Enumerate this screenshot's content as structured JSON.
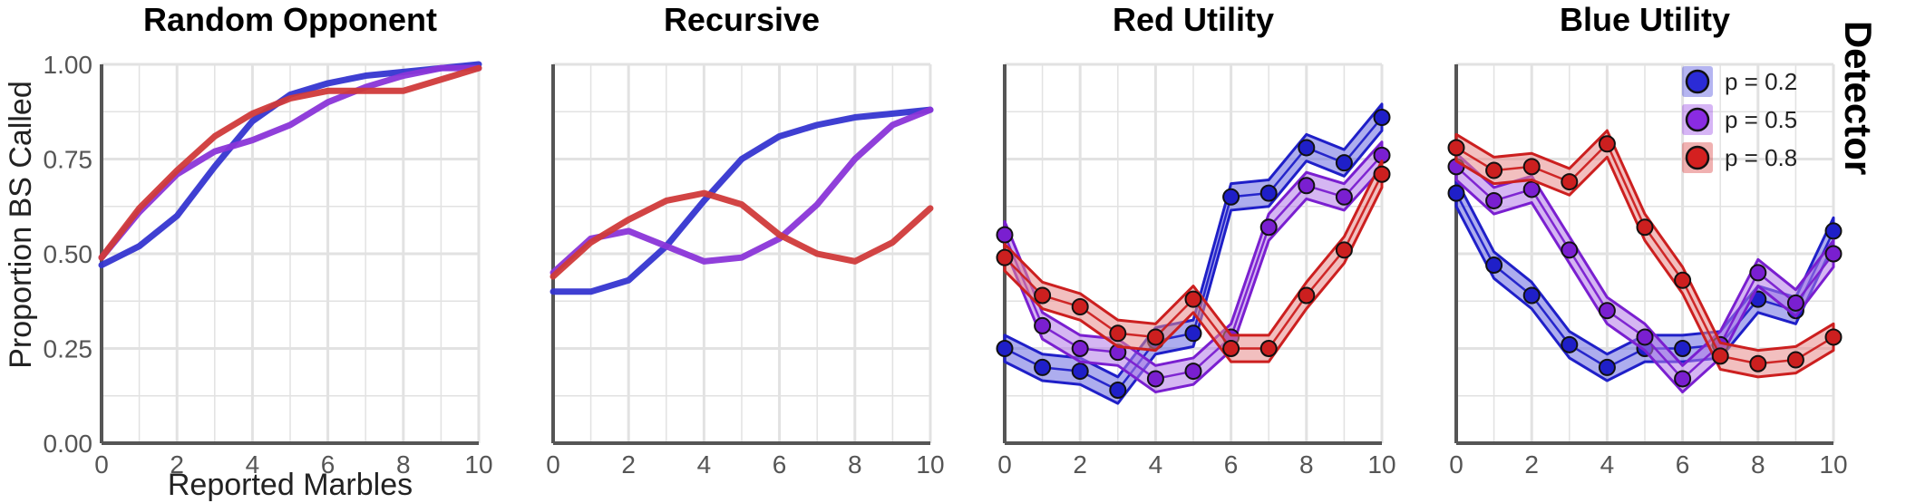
{
  "strip_label": "Detector",
  "legend": {
    "entries": [
      {
        "label": "p = 0.2",
        "color": "#2b2bd6"
      },
      {
        "label": "p = 0.5",
        "color": "#8a2be2"
      },
      {
        "label": "p = 0.8",
        "color": "#d42020"
      }
    ]
  },
  "chart_data": [
    {
      "type": "line",
      "title": "Random Opponent",
      "xlabel": "Reported Marbles",
      "ylabel": "Proportion BS Called",
      "x": [
        0,
        1,
        2,
        3,
        4,
        5,
        6,
        7,
        8,
        9,
        10
      ],
      "xticks": [
        "0",
        "2",
        "4",
        "6",
        "8",
        "10"
      ],
      "yticks": [
        "0.00",
        "0.25",
        "0.50",
        "0.75",
        "1.00"
      ],
      "xlim": [
        0,
        10
      ],
      "ylim": [
        0,
        1
      ],
      "grid": true,
      "show_points": false,
      "show_band": false,
      "series": [
        {
          "name": "p = 0.2",
          "color": "#3535d0",
          "values": [
            0.47,
            0.52,
            0.6,
            0.73,
            0.85,
            0.92,
            0.95,
            0.97,
            0.98,
            0.99,
            1.0
          ]
        },
        {
          "name": "p = 0.5",
          "color": "#8a35d8",
          "values": [
            0.49,
            0.61,
            0.71,
            0.77,
            0.8,
            0.84,
            0.9,
            0.94,
            0.97,
            0.99,
            0.99
          ]
        },
        {
          "name": "p = 0.8",
          "color": "#d03a3a",
          "values": [
            0.49,
            0.62,
            0.72,
            0.81,
            0.87,
            0.91,
            0.93,
            0.93,
            0.93,
            0.96,
            0.99
          ]
        }
      ]
    },
    {
      "type": "line",
      "title": "Recursive",
      "xlabel": "",
      "ylabel": "",
      "x": [
        0,
        1,
        2,
        3,
        4,
        5,
        6,
        7,
        8,
        9,
        10
      ],
      "xticks": [
        "0",
        "2",
        "4",
        "6",
        "8",
        "10"
      ],
      "yticks": [],
      "xlim": [
        0,
        10
      ],
      "ylim": [
        0,
        1
      ],
      "grid": true,
      "show_points": false,
      "show_band": false,
      "series": [
        {
          "name": "p = 0.2",
          "color": "#3535d0",
          "values": [
            0.4,
            0.4,
            0.43,
            0.52,
            0.64,
            0.75,
            0.81,
            0.84,
            0.86,
            0.87,
            0.88
          ]
        },
        {
          "name": "p = 0.5",
          "color": "#8a35d8",
          "values": [
            0.45,
            0.54,
            0.56,
            0.52,
            0.48,
            0.49,
            0.54,
            0.63,
            0.75,
            0.84,
            0.88
          ]
        },
        {
          "name": "p = 0.8",
          "color": "#d03a3a",
          "values": [
            0.44,
            0.53,
            0.59,
            0.64,
            0.66,
            0.63,
            0.55,
            0.5,
            0.48,
            0.53,
            0.62
          ]
        }
      ]
    },
    {
      "type": "line",
      "title": "Red Utility",
      "xlabel": "",
      "ylabel": "",
      "x": [
        0,
        1,
        2,
        3,
        4,
        5,
        6,
        7,
        8,
        9,
        10
      ],
      "xticks": [
        "0",
        "2",
        "4",
        "6",
        "8",
        "10"
      ],
      "yticks": [],
      "xlim": [
        0,
        10
      ],
      "ylim": [
        0,
        1
      ],
      "grid": true,
      "show_points": true,
      "show_band": true,
      "band_half_width": 0.035,
      "series": [
        {
          "name": "p = 0.2",
          "color": "#1f1fc8",
          "band_color": "#6a6ae0",
          "values": [
            0.25,
            0.2,
            0.19,
            0.14,
            0.27,
            0.29,
            0.65,
            0.66,
            0.78,
            0.74,
            0.86
          ]
        },
        {
          "name": "p = 0.5",
          "color": "#7a1fd0",
          "band_color": "#b37ae8",
          "values": [
            0.55,
            0.31,
            0.25,
            0.24,
            0.17,
            0.19,
            0.28,
            0.57,
            0.68,
            0.65,
            0.76
          ]
        },
        {
          "name": "p = 0.8",
          "color": "#cc1f1f",
          "band_color": "#e88a8a",
          "values": [
            0.49,
            0.39,
            0.36,
            0.29,
            0.28,
            0.38,
            0.25,
            0.25,
            0.39,
            0.51,
            0.71
          ]
        }
      ]
    },
    {
      "type": "line",
      "title": "Blue Utility",
      "xlabel": "",
      "ylabel": "",
      "x": [
        0,
        1,
        2,
        3,
        4,
        5,
        6,
        7,
        8,
        9,
        10
      ],
      "xticks": [
        "0",
        "2",
        "4",
        "6",
        "8",
        "10"
      ],
      "yticks": [],
      "xlim": [
        0,
        10
      ],
      "ylim": [
        0,
        1
      ],
      "grid": true,
      "show_points": true,
      "show_band": true,
      "band_half_width": 0.035,
      "series": [
        {
          "name": "p = 0.2",
          "color": "#1f1fc8",
          "band_color": "#6a6ae0",
          "values": [
            0.66,
            0.47,
            0.39,
            0.26,
            0.2,
            0.25,
            0.25,
            0.26,
            0.38,
            0.35,
            0.56
          ]
        },
        {
          "name": "p = 0.5",
          "color": "#7a1fd0",
          "band_color": "#b37ae8",
          "values": [
            0.73,
            0.64,
            0.67,
            0.51,
            0.35,
            0.28,
            0.17,
            0.26,
            0.45,
            0.37,
            0.5
          ]
        },
        {
          "name": "p = 0.8",
          "color": "#cc1f1f",
          "band_color": "#e88a8a",
          "values": [
            0.78,
            0.72,
            0.73,
            0.69,
            0.79,
            0.57,
            0.43,
            0.23,
            0.21,
            0.22,
            0.28
          ]
        }
      ]
    }
  ]
}
